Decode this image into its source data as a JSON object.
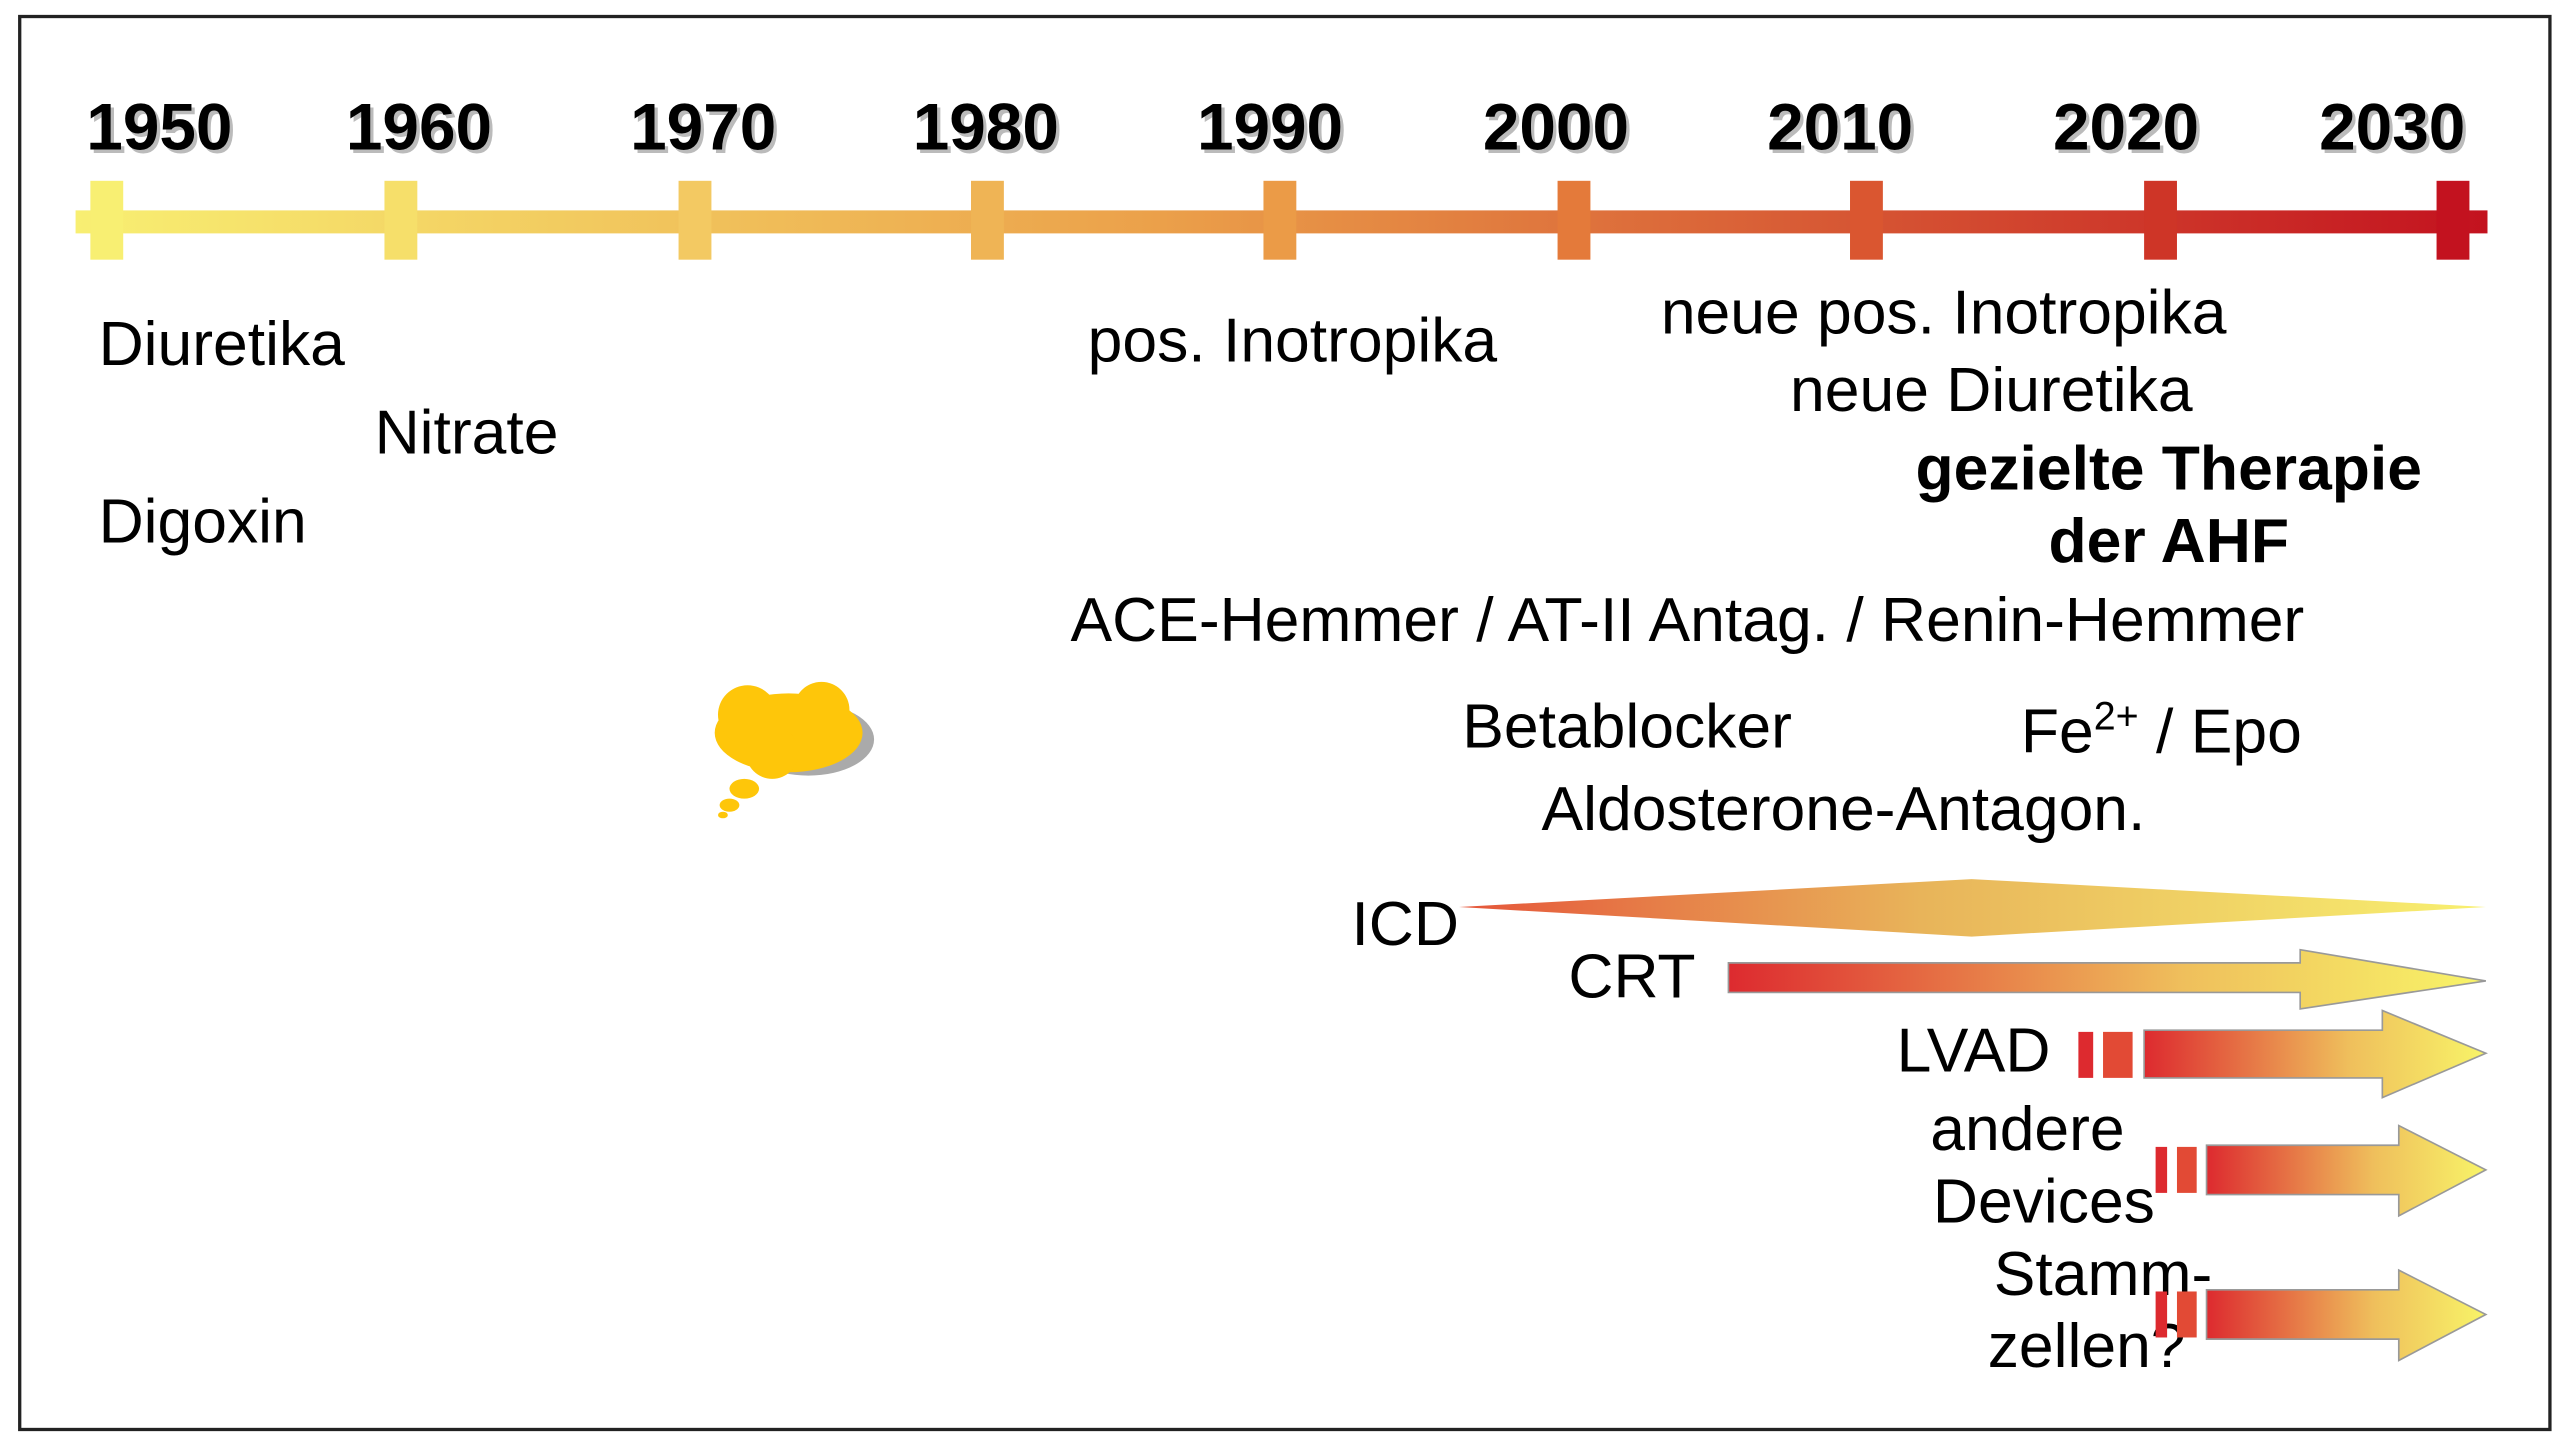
{
  "timeline": {
    "years": [
      "1950",
      "1960",
      "1970",
      "1980",
      "1990",
      "2000",
      "2010",
      "2020",
      "2030"
    ]
  },
  "therapies": {
    "diuretika": "Diuretika",
    "nitrate": "Nitrate",
    "digoxin": "Digoxin",
    "pos_inotropika": "pos. Inotropika",
    "neue_pos_inotropika": "neue pos. Inotropika",
    "neue_diuretika": "neue Diuretika",
    "gezielte_1": "gezielte Therapie",
    "gezielte_2": "der AHF",
    "ace": "ACE-Hemmer / AT-II Antag. / Renin-Hemmer",
    "betablocker": "Betablocker",
    "fe": {
      "base": "Fe",
      "sup": "2+",
      "rest": " / Epo"
    },
    "aldosterone": "Aldosterone-Antagon."
  },
  "devices": {
    "icd": "ICD",
    "crt": "CRT",
    "lvad": "LVAD",
    "andere_1": "andere",
    "andere_2": "Devices",
    "stamm_1": "Stamm-",
    "stamm_2": "zellen?"
  }
}
